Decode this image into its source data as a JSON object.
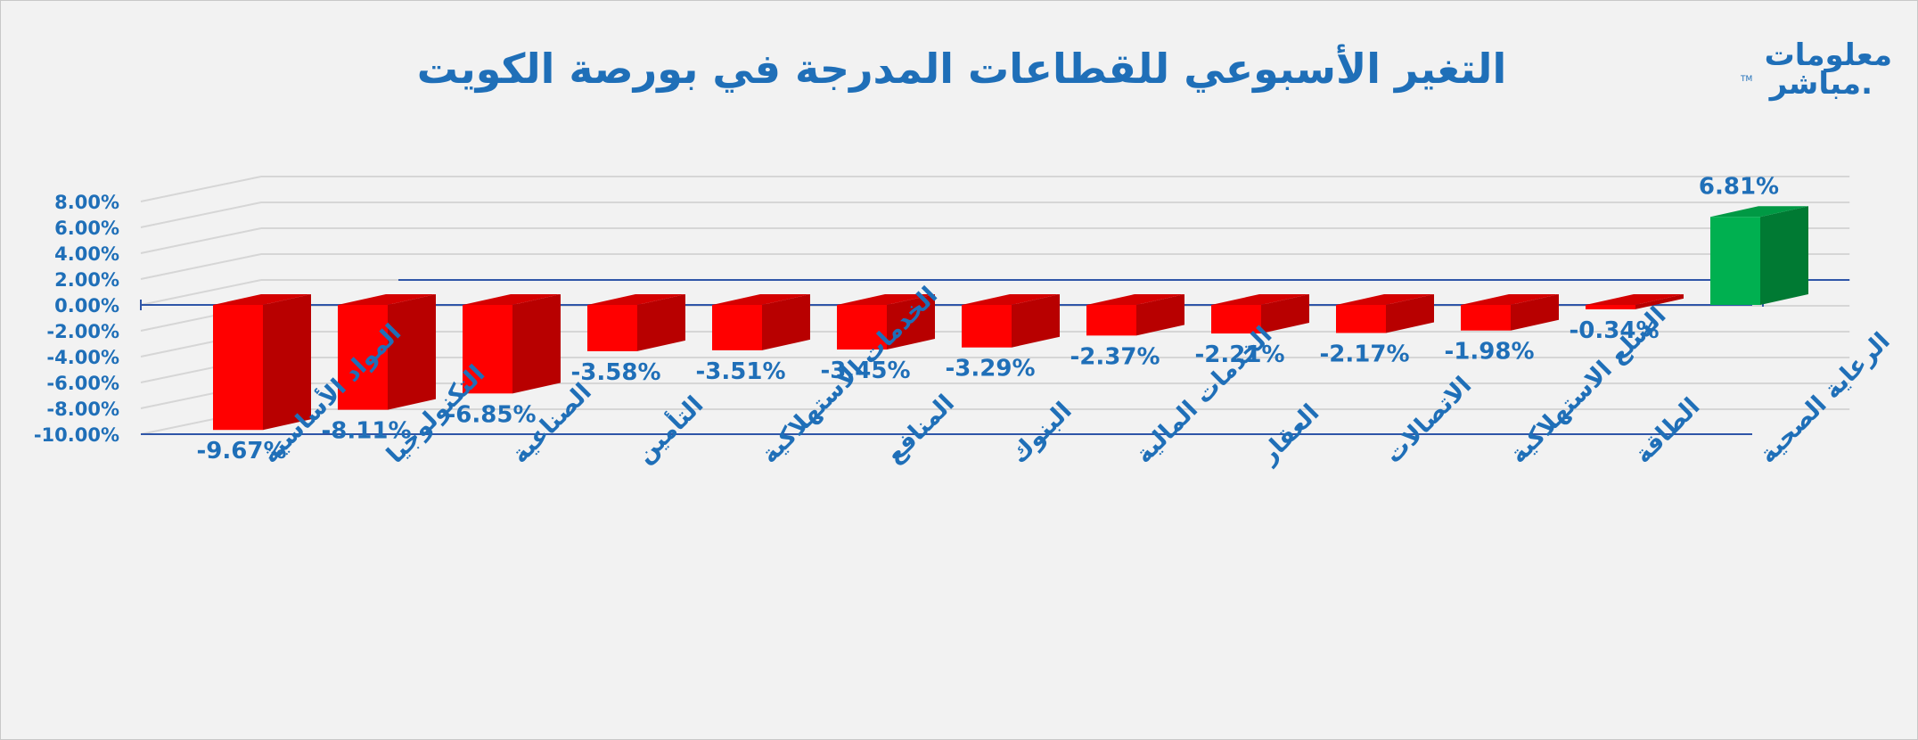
{
  "logo": {
    "line1": "معلومات",
    "line2": "مباشر.",
    "tm": "TM"
  },
  "chart_data": {
    "type": "bar",
    "title": "التغير الأسبوعي للقطاعات المدرجة في بورصة الكويت",
    "xlabel": "",
    "ylabel": "",
    "categories": [
      "المواد الأساسية",
      "التكنولوجيا",
      "الصناعية",
      "التأمين",
      "الخدمات الاستهلاكية",
      "المنافع",
      "البنوك",
      "الخدمات المالية",
      "العقار",
      "الاتصالات",
      "السلع الاستهلاكية",
      "الطاقة",
      "الرعاية الصحية"
    ],
    "values": [
      -9.67,
      -8.11,
      -6.85,
      -3.58,
      -3.51,
      -3.45,
      -3.29,
      -2.37,
      -2.21,
      -2.17,
      -1.98,
      -0.34,
      6.81
    ],
    "labels": [
      "-9.67%",
      "-8.11%",
      "-6.85%",
      "-3.58%",
      "-3.51%",
      "-3.45%",
      "-3.29%",
      "-2.37%",
      "-2.21%",
      "-2.17%",
      "-1.98%",
      "-0.34%",
      "6.81%"
    ],
    "ylim": [
      -10,
      8
    ],
    "yticks": [
      "8.00%",
      "6.00%",
      "4.00%",
      "2.00%",
      "0.00%",
      "-2.00%",
      "-4.00%",
      "-6.00%",
      "-8.00%",
      "-10.00%"
    ],
    "grid": true,
    "colors": {
      "negative_front": "#ff0000",
      "negative_side": "#b80000",
      "negative_top": "#d40000",
      "positive_front": "#00b050",
      "positive_side": "#007a33",
      "positive_top": "#009944",
      "text": "#1f6fb8",
      "axis": "#2f56a8",
      "grid": "#d6d6d6"
    }
  }
}
